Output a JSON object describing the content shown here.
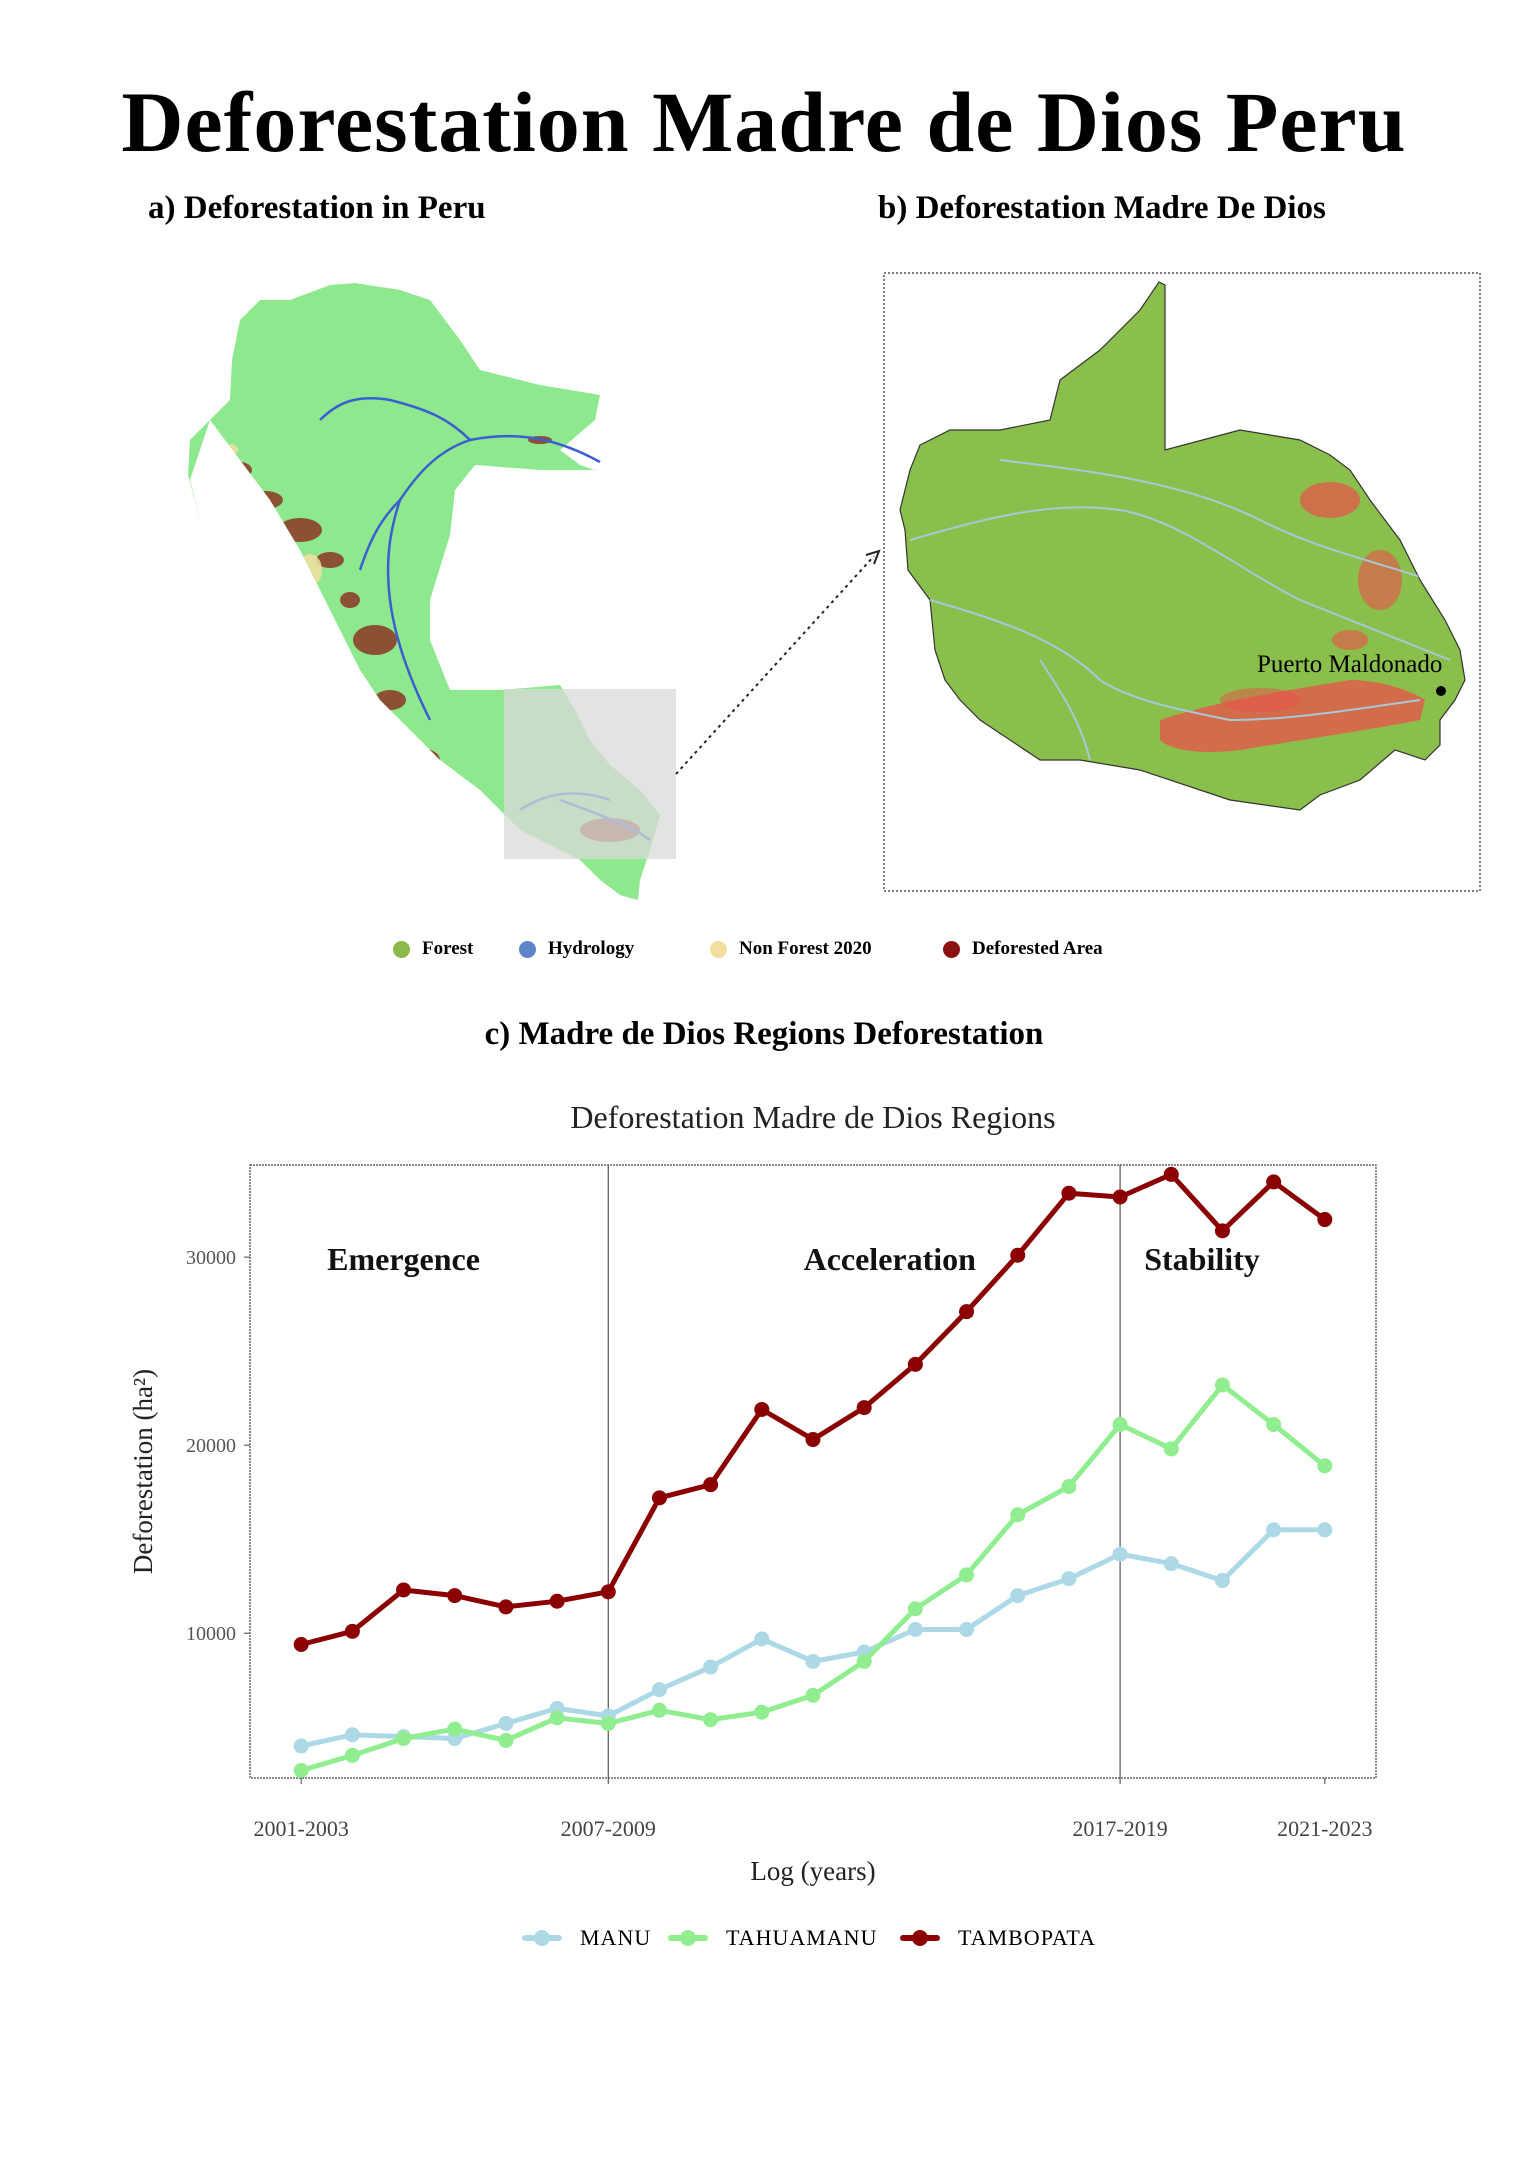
{
  "title": "Deforestation Madre de Dios Peru",
  "panels": {
    "a_title": "a) Deforestation in Peru",
    "b_title": "b) Deforestation Madre De Dios",
    "c_title": "c) Madre de Dios Regions Deforestation"
  },
  "map": {
    "city_label": "Puerto Maldonado",
    "legend": [
      {
        "label": "Forest",
        "color": "#8bba4a"
      },
      {
        "label": "Hydrology",
        "color": "#5f84c9"
      },
      {
        "label": "Non Forest 2020",
        "color": "#f2dfa0"
      },
      {
        "label": "Deforested Area",
        "color": "#8b1010"
      }
    ],
    "colors": {
      "peru_forest": "#8ee88e",
      "mdd_forest": "#8bbf4c",
      "river": "#3a5fd0",
      "deforested": "#8b1010",
      "nonforest": "#f2dfa0",
      "mdd_deforested": "#e9504a",
      "highlight": "#d9d9d9"
    }
  },
  "chart_data": {
    "type": "line",
    "title": "Deforestation Madre de Dios Regions",
    "xlabel": "Log (years)",
    "ylabel": "Deforestation (ha²)",
    "x_tick_labels": [
      {
        "index": 0,
        "label": "2001-2003"
      },
      {
        "index": 6,
        "label": "2007-2009"
      },
      {
        "index": 16,
        "label": "2017-2019"
      },
      {
        "index": 20,
        "label": "2021-2023"
      }
    ],
    "y_ticks": [
      10000,
      20000,
      30000
    ],
    "ylim": [
      2300,
      34900
    ],
    "xlim": [
      -1,
      21
    ],
    "phase_dividers": [
      6,
      16
    ],
    "phases": [
      {
        "label": "Emergence",
        "index": 2
      },
      {
        "label": "Acceleration",
        "index": 11.5
      },
      {
        "label": "Stability",
        "index": 17.6
      }
    ],
    "series": [
      {
        "name": "MANU",
        "color": "#add8e6",
        "values": [
          4000,
          4600,
          4500,
          4400,
          5200,
          6000,
          5600,
          7000,
          8200,
          9700,
          8500,
          9000,
          10200,
          10200,
          12000,
          12900,
          14200,
          13700,
          12800,
          15500,
          15500
        ]
      },
      {
        "name": "TAHUAMANU",
        "color": "#90ee90",
        "values": [
          2700,
          3500,
          4400,
          4900,
          4300,
          5500,
          5200,
          5900,
          5400,
          5800,
          6700,
          8500,
          11300,
          13100,
          16300,
          17800,
          21100,
          19800,
          23200,
          21100,
          18900
        ]
      },
      {
        "name": "TAMBOPATA",
        "color": "#8b0000",
        "values": [
          9400,
          10100,
          12300,
          12000,
          11400,
          11700,
          12200,
          17200,
          17900,
          21900,
          20300,
          22000,
          24300,
          27100,
          30100,
          33400,
          33200,
          34400,
          31400,
          34000,
          32000
        ]
      }
    ],
    "legend_position": "bottom",
    "grid": false
  }
}
